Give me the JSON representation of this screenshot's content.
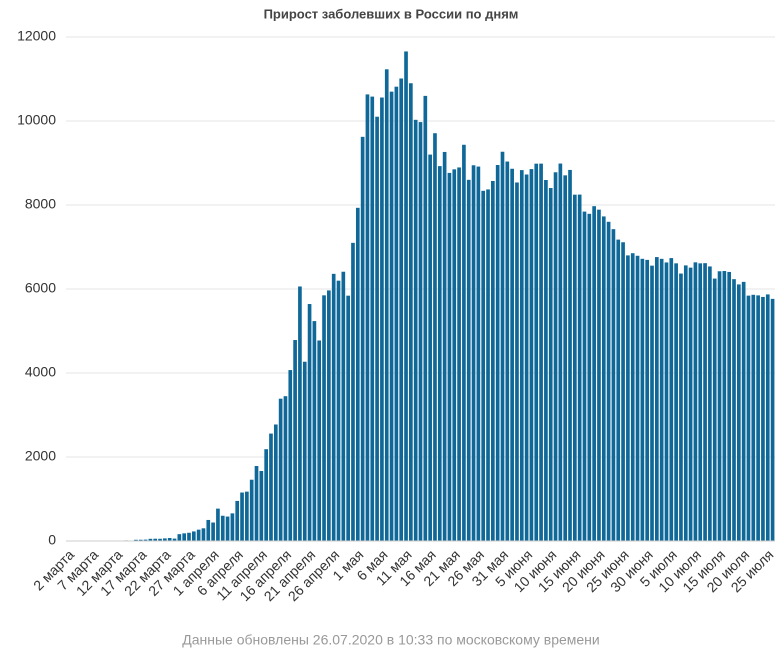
{
  "chart_data": {
    "type": "bar",
    "title": "Прирост заболевших в России по дням",
    "footer": "Данные обновлены 26.07.2020 в 10:33 по московскому времени",
    "categories": [
      "2 марта",
      null,
      null,
      null,
      null,
      "7 марта",
      null,
      null,
      null,
      null,
      "12 марта",
      null,
      null,
      null,
      null,
      "17 марта",
      null,
      null,
      null,
      null,
      "22 марта",
      null,
      null,
      null,
      null,
      "27 марта",
      null,
      null,
      null,
      null,
      "1 апреля",
      null,
      null,
      null,
      null,
      "6 апреля",
      null,
      null,
      null,
      null,
      "11 апреля",
      null,
      null,
      null,
      null,
      "16 апреля",
      null,
      null,
      null,
      null,
      "21 апреля",
      null,
      null,
      null,
      null,
      "26 апреля",
      null,
      null,
      null,
      null,
      "1 мая",
      null,
      null,
      null,
      null,
      "6 мая",
      null,
      null,
      null,
      null,
      "11 мая",
      null,
      null,
      null,
      null,
      "16 мая",
      null,
      null,
      null,
      null,
      "21 мая",
      null,
      null,
      null,
      null,
      "26 мая",
      null,
      null,
      null,
      null,
      "31 мая",
      null,
      null,
      null,
      null,
      "5 июня",
      null,
      null,
      null,
      null,
      "10 июня",
      null,
      null,
      null,
      null,
      "15 июня",
      null,
      null,
      null,
      null,
      "20 июня",
      null,
      null,
      null,
      null,
      "25 июня",
      null,
      null,
      null,
      null,
      "30 июня",
      null,
      null,
      null,
      null,
      "5 июля",
      null,
      null,
      null,
      null,
      "10 июля",
      null,
      null,
      null,
      null,
      "15 июля",
      null,
      null,
      null,
      null,
      "20 июля",
      null,
      null,
      null,
      null,
      "25 июля",
      null
    ],
    "values": [
      1,
      0,
      0,
      1,
      6,
      2,
      3,
      0,
      3,
      8,
      6,
      6,
      14,
      4,
      29,
      30,
      33,
      52,
      54,
      53,
      62,
      71,
      57,
      163,
      182,
      196,
      228,
      270,
      302,
      501,
      440,
      771,
      601,
      582,
      658,
      954,
      1154,
      1175,
      1459,
      1786,
      1667,
      2186,
      2558,
      2774,
      3388,
      3448,
      4070,
      4785,
      6060,
      4268,
      5642,
      5236,
      4774,
      5849,
      5966,
      6361,
      6198,
      6411,
      5841,
      7099,
      7933,
      9623,
      10633,
      10581,
      10102,
      10559,
      11231,
      10699,
      10817,
      11012,
      11656,
      10899,
      10028,
      9974,
      10598,
      9200,
      9709,
      8926,
      9263,
      8764,
      8849,
      8894,
      9434,
      8599,
      8946,
      8915,
      8338,
      8371,
      8572,
      8952,
      9268,
      9035,
      8863,
      8536,
      8831,
      8726,
      8855,
      8984,
      8985,
      8595,
      8404,
      8779,
      8987,
      8706,
      8835,
      8246,
      8248,
      7843,
      7790,
      7972,
      7889,
      7728,
      7600,
      7425,
      7176,
      7113,
      6800,
      6852,
      6791,
      6719,
      6693,
      6556,
      6760,
      6718,
      6632,
      6736,
      6611,
      6368,
      6562,
      6509,
      6635,
      6611,
      6615,
      6537,
      6248,
      6422,
      6428,
      6406,
      6234,
      6109,
      6170,
      5842,
      5862,
      5848,
      5811,
      5871,
      5765
    ],
    "color": "#0f6897",
    "ylim": [
      0,
      12000
    ],
    "yticks": [
      0,
      2000,
      4000,
      6000,
      8000,
      10000,
      12000
    ],
    "grid": true
  }
}
